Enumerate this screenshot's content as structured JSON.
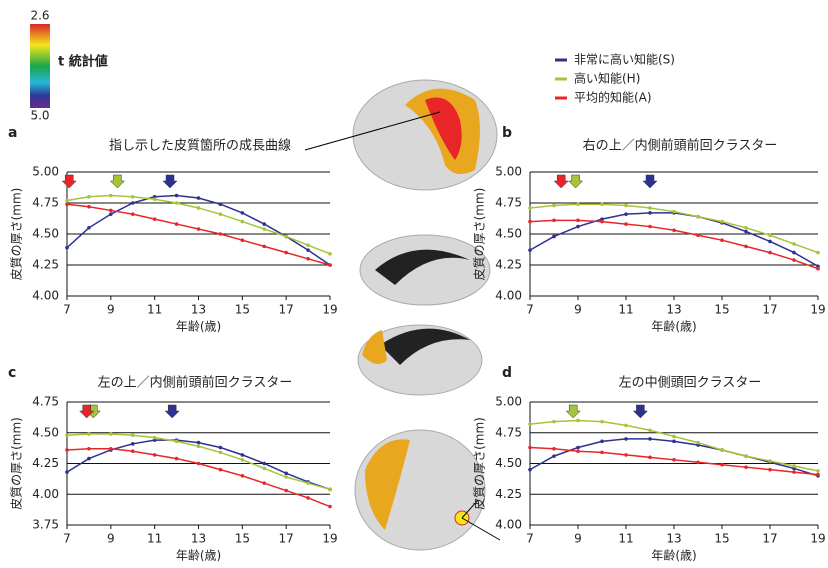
{
  "colorbar": {
    "title": "t 統計値",
    "ticks": [
      2.6,
      {
        "value": 5,
        "label": "5.0"
      }
    ]
  },
  "chart_data": [
    {
      "type": "line",
      "panel": "a",
      "title": "指し示した皮質箇所の成長曲線",
      "x_label": "年齢(歳)",
      "y_label": "皮質の厚さ(mm)",
      "x": [
        7,
        8,
        9,
        10,
        11,
        12,
        13,
        14,
        15,
        16,
        17,
        18,
        19
      ],
      "xlim": [
        7,
        19
      ],
      "xticks": [
        7,
        9,
        11,
        13,
        15,
        17,
        19
      ],
      "ylim": [
        4,
        5
      ],
      "yticks": [
        {
          "value": 4,
          "label": "4.00"
        },
        {
          "value": 4.25,
          "label": "4.25"
        },
        {
          "value": 4.5,
          "label": "4.50"
        },
        {
          "value": 4.75,
          "label": "4.75"
        },
        {
          "value": 5,
          "label": "5.00"
        }
      ],
      "grid": true,
      "series": [
        {
          "name": "非常に高い知能(S)",
          "color": "#2e3192",
          "peak": 11.7,
          "values": [
            4.39,
            4.55,
            4.66,
            4.75,
            4.8,
            4.81,
            4.79,
            4.74,
            4.67,
            4.58,
            4.48,
            4.37,
            4.25
          ]
        },
        {
          "name": "高い知能(H)",
          "color": "#a6c43a",
          "peak": 9.3,
          "values": [
            4.77,
            4.8,
            4.81,
            4.8,
            4.78,
            4.75,
            4.71,
            4.66,
            4.6,
            4.54,
            4.48,
            4.41,
            4.34
          ]
        },
        {
          "name": "平均的知能(A)",
          "color": "#e8262a",
          "peak": 7.1,
          "values": [
            4.74,
            4.72,
            4.69,
            4.66,
            4.62,
            4.58,
            4.54,
            4.5,
            4.45,
            4.4,
            4.35,
            4.3,
            4.25
          ]
        }
      ]
    },
    {
      "type": "line",
      "panel": "b",
      "title": "右の上／内側前頭前回クラスター",
      "x_label": "年齢(歳)",
      "y_label": "皮質の厚さ(mm)",
      "x": [
        7,
        8,
        9,
        10,
        11,
        12,
        13,
        14,
        15,
        16,
        17,
        18,
        19
      ],
      "xlim": [
        7,
        19
      ],
      "xticks": [
        7,
        9,
        11,
        13,
        15,
        17,
        19
      ],
      "ylim": [
        4,
        5
      ],
      "yticks": [
        {
          "value": 4,
          "label": "4.00"
        },
        {
          "value": 4.25,
          "label": "4.25"
        },
        {
          "value": 4.5,
          "label": "4.50"
        },
        {
          "value": 4.75,
          "label": "4.75"
        },
        {
          "value": 5,
          "label": "5.00"
        }
      ],
      "grid": true,
      "series": [
        {
          "color": "#2e3192",
          "peak": 12,
          "values": [
            4.37,
            4.48,
            4.56,
            4.62,
            4.66,
            4.67,
            4.67,
            4.64,
            4.59,
            4.52,
            4.44,
            4.35,
            4.24
          ]
        },
        {
          "color": "#a6c43a",
          "peak": 8.9,
          "values": [
            4.71,
            4.73,
            4.74,
            4.74,
            4.73,
            4.71,
            4.68,
            4.64,
            4.6,
            4.55,
            4.49,
            4.42,
            4.35
          ]
        },
        {
          "color": "#e8262a",
          "peak": 8.3,
          "values": [
            4.6,
            4.61,
            4.61,
            4.6,
            4.58,
            4.56,
            4.53,
            4.49,
            4.45,
            4.4,
            4.35,
            4.29,
            4.22
          ]
        }
      ]
    },
    {
      "type": "line",
      "panel": "c",
      "title": "左の上／内側前頭前回クラスター",
      "x_label": "年齢(歳)",
      "y_label": "皮質の厚さ(mm)",
      "x": [
        7,
        8,
        9,
        10,
        11,
        12,
        13,
        14,
        15,
        16,
        17,
        18,
        19
      ],
      "xlim": [
        7,
        19
      ],
      "xticks": [
        7,
        9,
        11,
        13,
        15,
        17,
        19
      ],
      "ylim": [
        3.75,
        4.75
      ],
      "yticks": [
        3.75,
        {
          "value": 4,
          "label": "4.00"
        },
        4.25,
        {
          "value": 4.5,
          "label": "4.50"
        },
        4.75
      ],
      "grid": true,
      "series": [
        {
          "color": "#2e3192",
          "peak": 11.8,
          "values": [
            4.18,
            4.29,
            4.36,
            4.41,
            4.44,
            4.44,
            4.42,
            4.38,
            4.32,
            4.25,
            4.17,
            4.1,
            4.04
          ]
        },
        {
          "color": "#a6c43a",
          "peak": 8.2,
          "values": [
            4.48,
            4.49,
            4.49,
            4.48,
            4.46,
            4.43,
            4.39,
            4.34,
            4.28,
            4.21,
            4.14,
            4.09,
            4.04
          ]
        },
        {
          "color": "#e8262a",
          "peak": 7.9,
          "values": [
            4.36,
            4.37,
            4.37,
            4.35,
            4.32,
            4.29,
            4.25,
            4.2,
            4.15,
            4.09,
            4.03,
            3.97,
            3.9
          ]
        }
      ]
    },
    {
      "type": "line",
      "panel": "d",
      "title": "左の中側頭回クラスター",
      "x_label": "年齢(歳)",
      "y_label": "皮質の厚さ(mm)",
      "x": [
        7,
        8,
        9,
        10,
        11,
        12,
        13,
        14,
        15,
        16,
        17,
        18,
        19
      ],
      "xlim": [
        7,
        19
      ],
      "xticks": [
        7,
        9,
        11,
        13,
        15,
        17,
        19
      ],
      "ylim": [
        4,
        5
      ],
      "yticks": [
        {
          "value": 4,
          "label": "4.00"
        },
        {
          "value": 4.25,
          "label": "4.25"
        },
        {
          "value": 4.5,
          "label": "4.50"
        },
        {
          "value": 4.75,
          "label": "4.75"
        },
        {
          "value": 5,
          "label": "5.00"
        }
      ],
      "grid": true,
      "series": [
        {
          "color": "#2e3192",
          "peak": 11.6,
          "values": [
            4.45,
            4.56,
            4.63,
            4.68,
            4.7,
            4.7,
            4.68,
            4.65,
            4.61,
            4.56,
            4.51,
            4.46,
            4.4
          ]
        },
        {
          "color": "#a6c43a",
          "peak": 8.8,
          "values": [
            4.82,
            4.84,
            4.85,
            4.84,
            4.81,
            4.77,
            4.72,
            4.67,
            4.61,
            4.56,
            4.52,
            4.48,
            4.44
          ]
        },
        {
          "color": "#e8262a",
          "values": [
            4.63,
            4.62,
            4.6,
            4.59,
            4.57,
            4.55,
            4.53,
            4.51,
            4.49,
            4.47,
            4.45,
            4.43,
            4.41
          ]
        }
      ]
    }
  ]
}
